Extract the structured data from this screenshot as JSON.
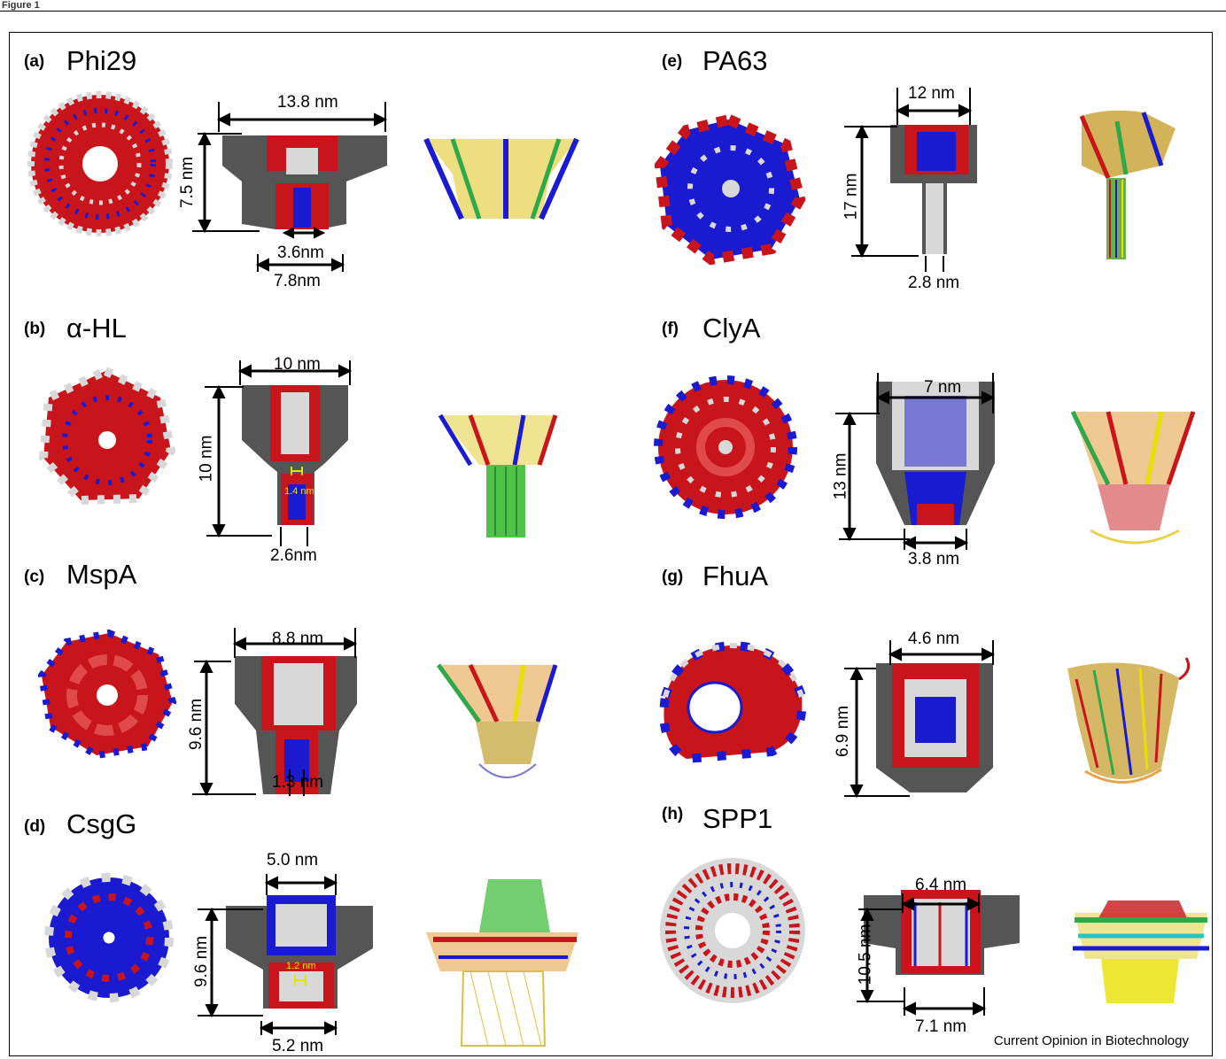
{
  "figure": {
    "label": "Figure 1"
  },
  "credit": "Current Opinion in Biotechnology",
  "panels": [
    {
      "id": "a",
      "label": "(a)",
      "title": "Phi29",
      "dims": [
        "13.8 nm",
        "7.5 nm",
        "3.6nm",
        "7.8nm"
      ]
    },
    {
      "id": "b",
      "label": "(b)",
      "title": "α-HL",
      "dims": [
        "10 nm",
        "10 nm",
        "1.4 nm",
        "2.6nm"
      ]
    },
    {
      "id": "c",
      "label": "(c)",
      "title": "MspA",
      "dims": [
        "8.8 nm",
        "9.6 nm",
        "1.3 nm"
      ]
    },
    {
      "id": "d",
      "label": "(d)",
      "title": "CsgG",
      "dims": [
        "5.0 nm",
        "9.6 nm",
        "1.2 nm",
        "5.2 nm"
      ]
    },
    {
      "id": "e",
      "label": "(e)",
      "title": "PA63",
      "dims": [
        "12 nm",
        "17 nm",
        "2.8 nm"
      ]
    },
    {
      "id": "f",
      "label": "(f)",
      "title": "ClyA",
      "dims": [
        "7 nm",
        "13 nm",
        "3.8 nm"
      ]
    },
    {
      "id": "g",
      "label": "(g)",
      "title": "FhuA",
      "dims": [
        "4.6 nm",
        "6.9 nm"
      ]
    },
    {
      "id": "h",
      "label": "(h)",
      "title": "SPP1",
      "dims": [
        "6.4 nm",
        "10.5 nm",
        "7.1 nm"
      ]
    }
  ],
  "colors": {
    "acidic": "#c8151b",
    "basic": "#1a1ad0",
    "neutral": "#d8d8d8",
    "cut": "#555555",
    "small_dim": "#e8e000"
  }
}
